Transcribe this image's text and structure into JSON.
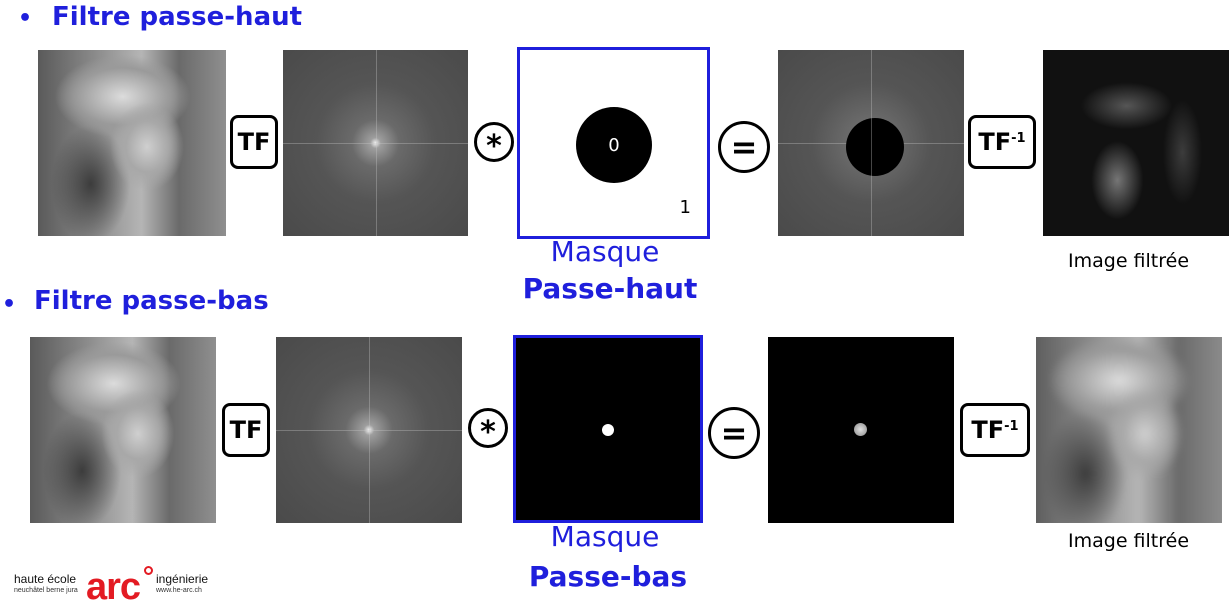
{
  "row1": {
    "heading": "Filtre passe-haut",
    "op_tf": "TF",
    "op_conv": "*",
    "mask_value_inner": "0",
    "mask_value_outer": "1",
    "op_equals": "=",
    "op_itf": "TF",
    "op_itf_sup": "-1",
    "mask_label_line1": "Masque",
    "mask_label_line2": "Passe-haut",
    "caption": "Image filtrée"
  },
  "row2": {
    "heading": "Filtre passe-bas",
    "op_tf": "TF",
    "op_conv": "*",
    "op_equals": "=",
    "op_itf": "TF",
    "op_itf_sup": "-1",
    "mask_label_line1": "Masque",
    "mask_label_line2": "Passe-bas",
    "caption": "Image filtrée"
  },
  "logo": {
    "left_text": "haute école",
    "left_sub": "neuchâtel berne jura",
    "brand": "arc",
    "right_text": "ingénierie",
    "right_sub": "www.he-arc.ch"
  },
  "colors": {
    "accent_blue": "#1f1fdc",
    "logo_red": "#e31b23"
  }
}
